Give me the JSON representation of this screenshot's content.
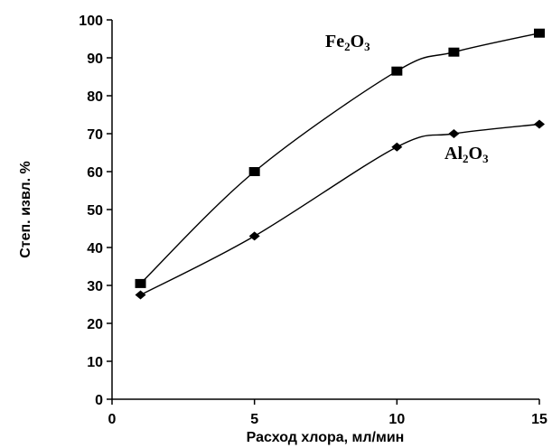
{
  "chart_data": {
    "type": "line",
    "xlabel": "Расход хлора, мл/мин",
    "ylabel": "Степ. извл. %",
    "xlim": [
      0,
      15
    ],
    "ylim": [
      0,
      100
    ],
    "xticks": [
      "0",
      "5",
      "10",
      "15"
    ],
    "yticks": [
      "0",
      "10",
      "20",
      "30",
      "40",
      "50",
      "60",
      "70",
      "80",
      "90",
      "100"
    ],
    "grid": false,
    "series": [
      {
        "name": "Fe2O3",
        "label_parts": [
          [
            "Fe",
            ""
          ],
          [
            "2",
            "sub"
          ],
          [
            "O",
            ""
          ],
          [
            "3",
            "sub"
          ]
        ],
        "marker": "square",
        "x": [
          1,
          5,
          10,
          12,
          15
        ],
        "y": [
          30.5,
          60,
          86.5,
          91.5,
          96.5
        ]
      },
      {
        "name": "Al2O3",
        "label_parts": [
          [
            "Al",
            ""
          ],
          [
            "2",
            "sub"
          ],
          [
            "O",
            ""
          ],
          [
            "3",
            "sub"
          ]
        ],
        "marker": "diamond",
        "x": [
          1,
          5,
          10,
          12,
          15
        ],
        "y": [
          27.5,
          43,
          66.5,
          70,
          72.5
        ]
      }
    ]
  }
}
